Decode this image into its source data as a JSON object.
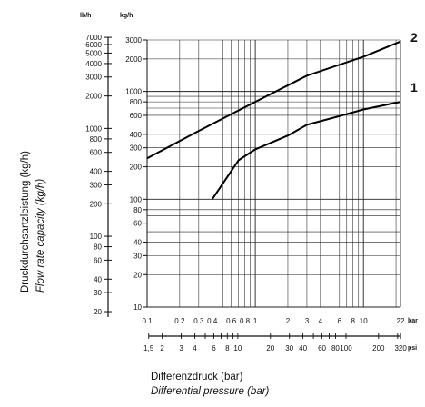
{
  "chart_data": {
    "type": "line",
    "x_scale": "log",
    "y_scale": "log",
    "xlim": [
      0.1,
      22
    ],
    "ylim": [
      10,
      3000
    ],
    "grid": true,
    "y_unit_primary": "kg/h",
    "y_unit_secondary": "lb/h",
    "x_unit_primary": "bar",
    "x_unit_secondary": "psi",
    "ylabel_de": "Druckdurchsartzleistung (kg/h)",
    "ylabel_en": "Flow rate capacity (kg/h)",
    "xlabel_de": "Differenzdruck (bar)",
    "xlabel_en": "Differential pressure (bar)",
    "x_ticks_bar": [
      {
        "value": 0.1,
        "label": "0.1"
      },
      {
        "value": 0.2,
        "label": "0.2"
      },
      {
        "value": 0.3,
        "label": "0.3"
      },
      {
        "value": 0.4,
        "label": "0.4"
      },
      {
        "value": 0.6,
        "label": "0.6"
      },
      {
        "value": 0.8,
        "label": "0.8"
      },
      {
        "value": 1,
        "label": "1"
      },
      {
        "value": 2,
        "label": "2"
      },
      {
        "value": 3,
        "label": "3"
      },
      {
        "value": 4,
        "label": "4"
      },
      {
        "value": 6,
        "label": "6"
      },
      {
        "value": 8,
        "label": "8"
      },
      {
        "value": 10,
        "label": "10"
      },
      {
        "value": 22,
        "label": "22"
      }
    ],
    "x_ticks_psi": [
      {
        "value": 1.5,
        "label": "1,5"
      },
      {
        "value": 2,
        "label": "2"
      },
      {
        "value": 3,
        "label": "3"
      },
      {
        "value": 4,
        "label": "4"
      },
      {
        "value": 6,
        "label": "6"
      },
      {
        "value": 8,
        "label": "8"
      },
      {
        "value": 10,
        "label": "10"
      },
      {
        "value": 20,
        "label": "20"
      },
      {
        "value": 30,
        "label": "30"
      },
      {
        "value": 40,
        "label": "40"
      },
      {
        "value": 60,
        "label": "60"
      },
      {
        "value": 80,
        "label": "80"
      },
      {
        "value": 100,
        "label": "100"
      },
      {
        "value": 200,
        "label": "200"
      },
      {
        "value": 320,
        "label": "320"
      }
    ],
    "y_ticks_kgh": [
      {
        "value": 10,
        "label": "10"
      },
      {
        "value": 20,
        "label": "20"
      },
      {
        "value": 30,
        "label": "30"
      },
      {
        "value": 40,
        "label": "40"
      },
      {
        "value": 60,
        "label": "60"
      },
      {
        "value": 80,
        "label": "80"
      },
      {
        "value": 100,
        "label": "100"
      },
      {
        "value": 200,
        "label": "200"
      },
      {
        "value": 300,
        "label": "300"
      },
      {
        "value": 400,
        "label": "400"
      },
      {
        "value": 600,
        "label": "600"
      },
      {
        "value": 800,
        "label": "800"
      },
      {
        "value": 1000,
        "label": "1000"
      },
      {
        "value": 2000,
        "label": "2000"
      },
      {
        "value": 3000,
        "label": "3000"
      }
    ],
    "y_ticks_lbh": [
      {
        "value": 20,
        "label": "20"
      },
      {
        "value": 30,
        "label": "30"
      },
      {
        "value": 40,
        "label": "40"
      },
      {
        "value": 60,
        "label": "60"
      },
      {
        "value": 80,
        "label": "80"
      },
      {
        "value": 100,
        "label": "100"
      },
      {
        "value": 200,
        "label": "200"
      },
      {
        "value": 300,
        "label": "300"
      },
      {
        "value": 400,
        "label": "400"
      },
      {
        "value": 600,
        "label": "600"
      },
      {
        "value": 800,
        "label": "800"
      },
      {
        "value": 1000,
        "label": "1000"
      },
      {
        "value": 2000,
        "label": "2000"
      },
      {
        "value": 3000,
        "label": "3000"
      },
      {
        "value": 4000,
        "label": "4000"
      },
      {
        "value": 5000,
        "label": "5000"
      },
      {
        "value": 6000,
        "label": "6000"
      },
      {
        "value": 7000,
        "label": "7000"
      }
    ],
    "series": [
      {
        "name": "2",
        "points": [
          {
            "x": 0.1,
            "y": 240
          },
          {
            "x": 0.3,
            "y": 430
          },
          {
            "x": 1,
            "y": 800
          },
          {
            "x": 3,
            "y": 1400
          },
          {
            "x": 10,
            "y": 2100
          },
          {
            "x": 22,
            "y": 2900
          }
        ]
      },
      {
        "name": "1",
        "points": [
          {
            "x": 0.4,
            "y": 100
          },
          {
            "x": 0.7,
            "y": 230
          },
          {
            "x": 1,
            "y": 290
          },
          {
            "x": 2,
            "y": 390
          },
          {
            "x": 3,
            "y": 490
          },
          {
            "x": 6,
            "y": 590
          },
          {
            "x": 10,
            "y": 680
          },
          {
            "x": 22,
            "y": 800
          }
        ]
      }
    ]
  }
}
